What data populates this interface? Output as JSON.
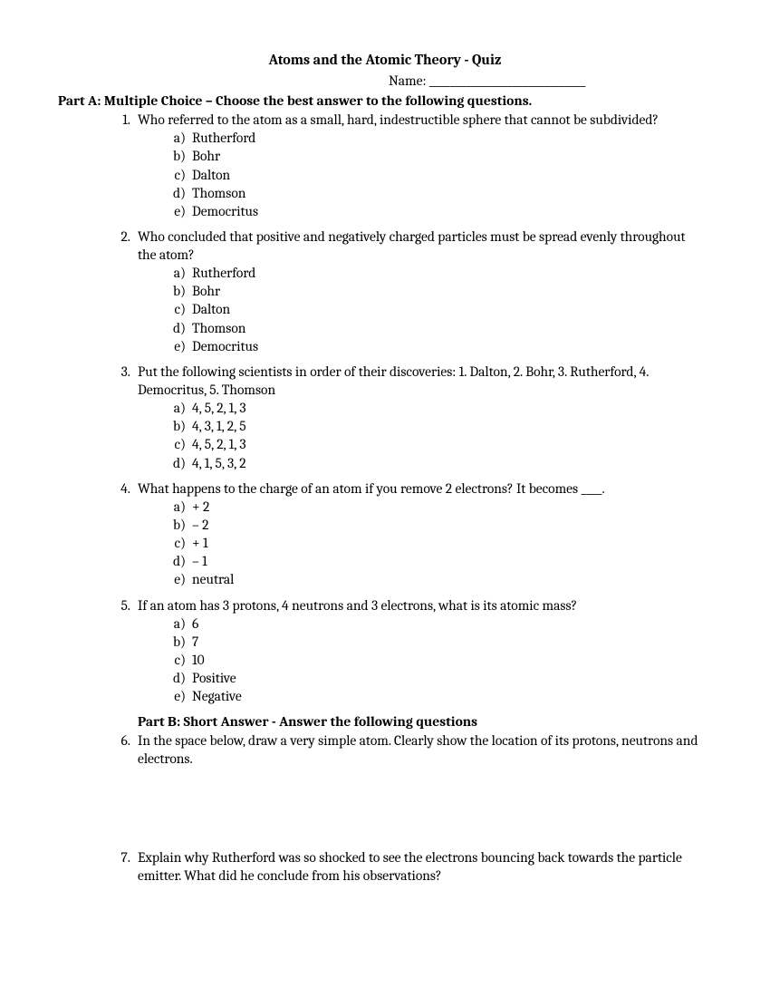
{
  "title": "Atoms and the Atomic Theory - Quiz",
  "name_label": "Name: ______________________________",
  "partA_header": "Part A: Multiple Choice – Choose the best answer to the following questions.",
  "partB_header": "Part B: Short Answer - Answer the following questions",
  "questions": [
    {
      "num": "1.",
      "text": "Who referred to the atom as a small, hard, indestructible sphere that cannot be subdivided?",
      "options": [
        {
          "letter": "a)",
          "text": "Rutherford"
        },
        {
          "letter": "b)",
          "text": "Bohr"
        },
        {
          "letter": "c)",
          "text": "Dalton"
        },
        {
          "letter": "d)",
          "text": "Thomson"
        },
        {
          "letter": "e)",
          "text": "Democritus"
        }
      ]
    },
    {
      "num": "2.",
      "text": "Who concluded that positive and negatively charged particles must be spread evenly throughout the atom?",
      "options": [
        {
          "letter": "a)",
          "text": "Rutherford"
        },
        {
          "letter": "b)",
          "text": "Bohr"
        },
        {
          "letter": "c)",
          "text": "Dalton"
        },
        {
          "letter": "d)",
          "text": "Thomson"
        },
        {
          "letter": "e)",
          "text": "Democritus"
        }
      ]
    },
    {
      "num": "3.",
      "text": "Put the following scientists in order of their discoveries: 1. Dalton, 2. Bohr, 3. Rutherford, 4. Democritus, 5. Thomson",
      "options": [
        {
          "letter": "a)",
          "text": "4, 5, 2, 1, 3"
        },
        {
          "letter": "b)",
          "text": "4, 3, 1, 2, 5"
        },
        {
          "letter": "c)",
          "text": "4, 5, 2, 1, 3"
        },
        {
          "letter": "d)",
          "text": "4, 1, 5, 3, 2"
        }
      ]
    },
    {
      "num": "4.",
      "text": "What happens to the charge of an atom if you remove 2 electrons? It becomes ____.",
      "options": [
        {
          "letter": "a)",
          "text": "+ 2"
        },
        {
          "letter": "b)",
          "text": "– 2"
        },
        {
          "letter": "c)",
          "text": "+ 1"
        },
        {
          "letter": "d)",
          "text": "– 1"
        },
        {
          "letter": "e)",
          "text": "neutral"
        }
      ]
    },
    {
      "num": "5.",
      "text": "If an atom has 3 protons, 4 neutrons and 3 electrons, what is its atomic mass?",
      "options": [
        {
          "letter": "a)",
          "text": "6"
        },
        {
          "letter": "b)",
          "text": "7"
        },
        {
          "letter": "c)",
          "text": "10"
        },
        {
          "letter": "d)",
          "text": "Positive"
        },
        {
          "letter": "e)",
          "text": "Negative"
        }
      ]
    }
  ],
  "q6": {
    "num": "6.",
    "text": "In the space below, draw a very simple atom. Clearly show the location of its protons, neutrons and electrons."
  },
  "q7": {
    "num": "7.",
    "text": "Explain why Rutherford was so shocked to see the electrons bouncing back towards the particle emitter. What did he conclude from his observations?"
  }
}
